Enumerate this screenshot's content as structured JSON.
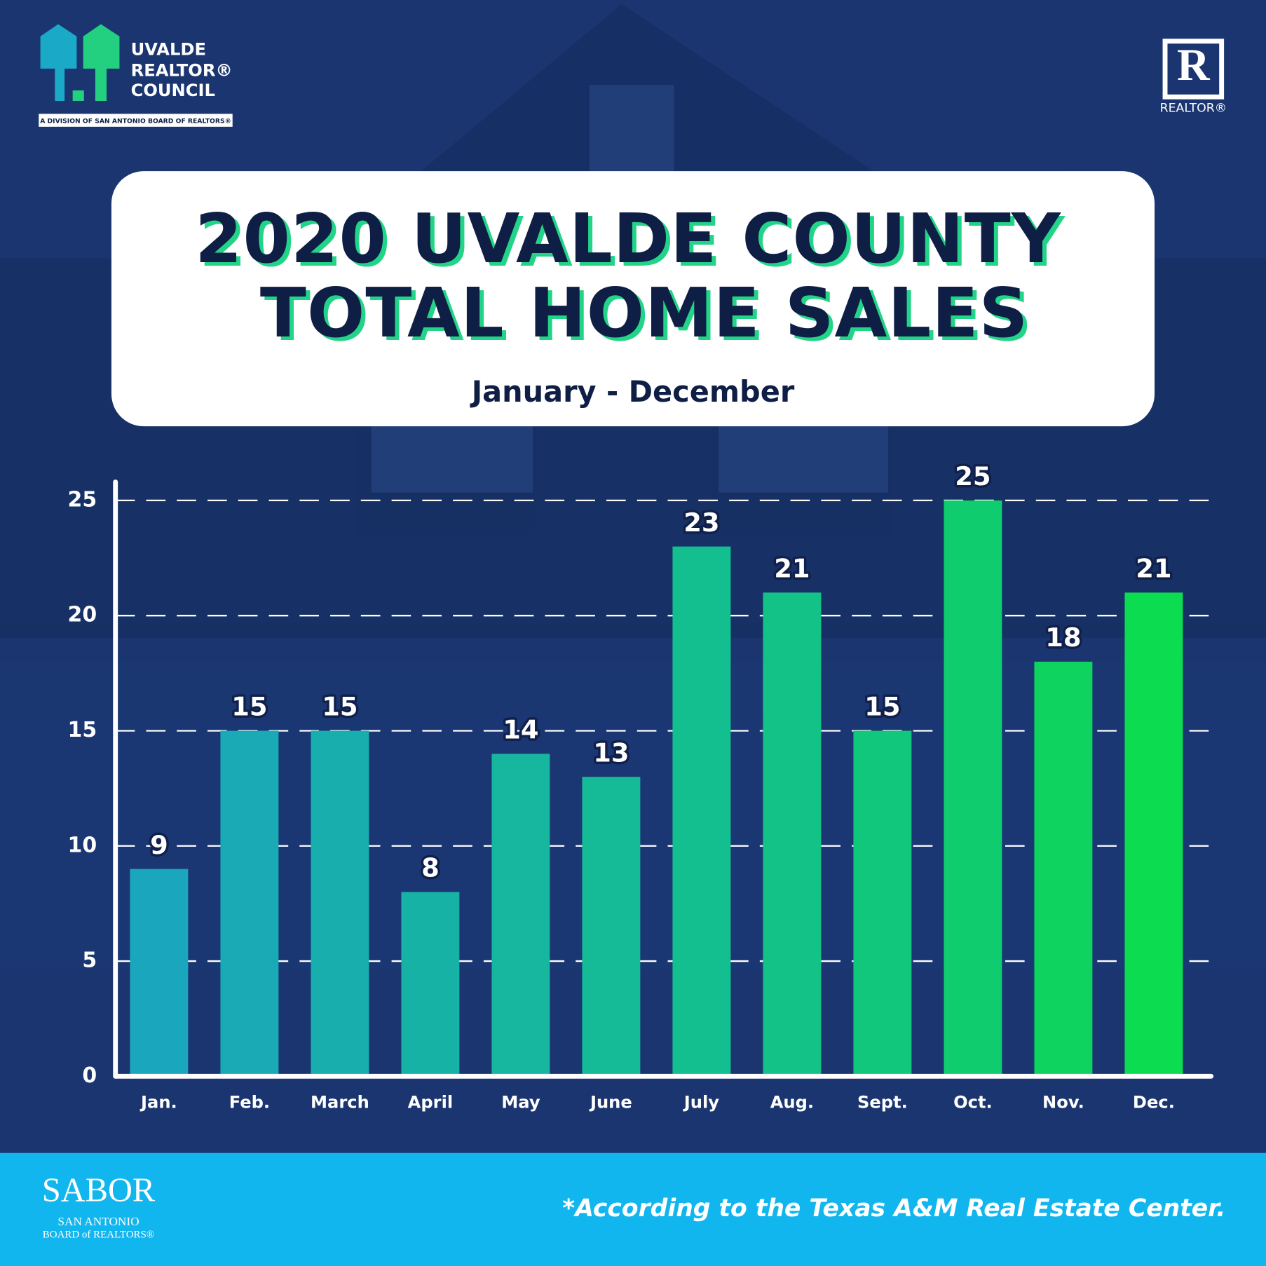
{
  "header": {
    "logo_lines": [
      "UVALDE",
      "REALTOR®",
      "COUNCIL"
    ],
    "logo_tagline": "A DIVISION OF SAN ANTONIO BOARD OF REALTORS®",
    "realtor_mark": "REALTOR®"
  },
  "chart_data": {
    "type": "bar",
    "title_lines": [
      "2020 UVALDE COUNTY",
      "TOTAL HOME SALES"
    ],
    "subtitle": "January - December",
    "categories": [
      "Jan.",
      "Feb.",
      "March",
      "April",
      "May",
      "June",
      "July",
      "Aug.",
      "Sept.",
      "Oct.",
      "Nov.",
      "Dec."
    ],
    "values": [
      9,
      15,
      15,
      8,
      14,
      13,
      23,
      21,
      15,
      25,
      18,
      21
    ],
    "colors": [
      "#1aa6bd",
      "#19aab5",
      "#18aeae",
      "#17b2a6",
      "#16b69f",
      "#15ba97",
      "#13be8f",
      "#12c287",
      "#11c77c",
      "#0fcc6f",
      "#0ed35f",
      "#0cdc4f"
    ],
    "ylim": [
      0,
      25.8
    ],
    "yticks": [
      0,
      5,
      10,
      15,
      20,
      25
    ],
    "grid": true
  },
  "footer": {
    "note": "*According to the Texas A&M Real Estate Center.",
    "sabor": "SABOR",
    "sabor_lines": [
      "SAN ANTONIO",
      "BOARD of REALTORS®"
    ]
  }
}
